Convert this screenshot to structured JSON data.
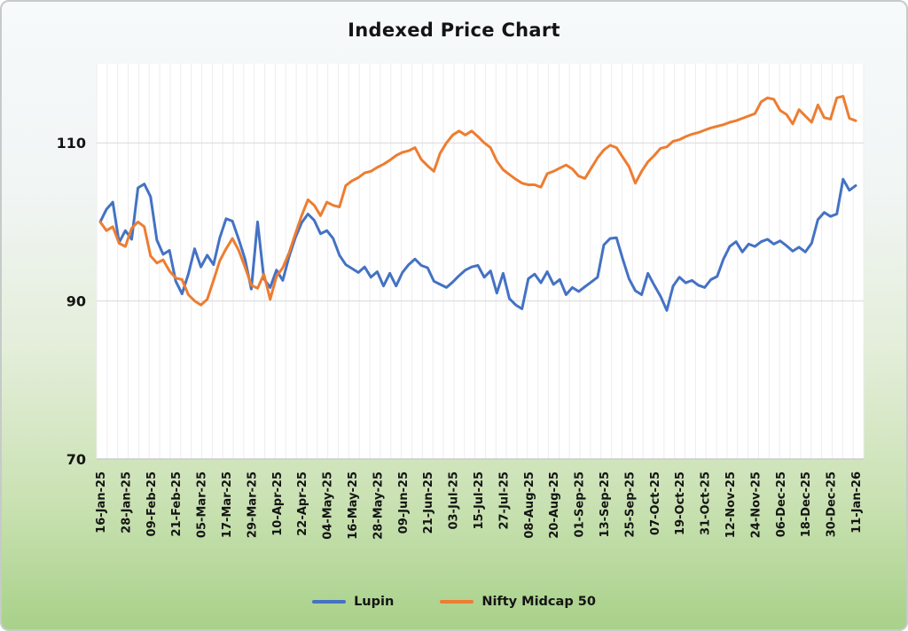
{
  "page": {
    "title": "Indexed Price Chart"
  },
  "theme": {
    "card_background_top": "#f7fafb",
    "card_background_bottom": "#a8d189",
    "plot_background": "#ffffff",
    "grid_vertical_color": "#ededef",
    "grid_horizontal_color": "#d8d8d8",
    "axis_line_color": "#c9cbcc",
    "text_color": "#141414"
  },
  "legend": {
    "items": [
      {
        "label": "Lupin",
        "color": "#4472C4"
      },
      {
        "label": "Nifty Midcap 50",
        "color": "#ED7D31"
      }
    ]
  },
  "chart_data": {
    "type": "line",
    "title": "Indexed Price Chart",
    "xlabel": "",
    "ylabel": "",
    "ylim": [
      70,
      120
    ],
    "y_ticks": [
      70,
      90,
      110
    ],
    "x_start": "16-Jan-25",
    "x_end": "11-Jan-26",
    "points_interval_days": 3,
    "x_tick_interval_days": 12,
    "x_tick_rotation": -90,
    "grid": "dense vertical minor lines + horizontal lines at 90 and 110",
    "legend_position": "bottom",
    "x_tick_labels": [
      "16-Jan-25",
      "28-Jan-25",
      "09-Feb-25",
      "21-Feb-25",
      "05-Mar-25",
      "17-Mar-25",
      "29-Mar-25",
      "10-Apr-25",
      "22-Apr-25",
      "04-May-25",
      "16-May-25",
      "28-May-25",
      "09-Jun-25",
      "21-Jun-25",
      "03-Jul-25",
      "15-Jul-25",
      "27-Jul-25",
      "08-Aug-25",
      "20-Aug-25",
      "01-Sep-25",
      "13-Sep-25",
      "25-Sep-25",
      "07-Oct-25",
      "19-Oct-25",
      "31-Oct-25",
      "12-Nov-25",
      "24-Nov-25",
      "06-Dec-25",
      "18-Dec-25",
      "30-Dec-25",
      "11-Jan-26"
    ],
    "series": [
      {
        "name": "Lupin",
        "color": "#4472C4",
        "values": [
          100,
          101.6,
          102.5,
          97.4,
          98.9,
          97.8,
          104.3,
          104.8,
          103.2,
          97.7,
          95.9,
          96.4,
          92.5,
          90.9,
          93.4,
          96.6,
          94.3,
          95.8,
          94.6,
          98,
          100.4,
          100.1,
          97.8,
          95.3,
          91.5,
          100,
          92.8,
          91.7,
          93.9,
          92.6,
          95.6,
          98,
          99.9,
          101,
          100.2,
          98.5,
          98.9,
          97.9,
          95.8,
          94.6,
          94.1,
          93.6,
          94.3,
          93,
          93.7,
          91.9,
          93.5,
          91.9,
          93.6,
          94.6,
          95.3,
          94.5,
          94.2,
          92.5,
          92.1,
          91.7,
          92.4,
          93.2,
          93.9,
          94.3,
          94.5,
          93,
          93.8,
          91,
          93.5,
          90.3,
          89.5,
          89,
          92.8,
          93.4,
          92.3,
          93.7,
          92.1,
          92.7,
          90.8,
          91.7,
          91.2,
          91.8,
          92.4,
          93,
          97.1,
          97.9,
          98,
          95.3,
          92.8,
          91.3,
          90.8,
          93.5,
          92,
          90.6,
          88.8,
          91.9,
          93,
          92.3,
          92.6,
          92,
          91.7,
          92.7,
          93.1,
          95.3,
          96.9,
          97.5,
          96.2,
          97.2,
          96.9,
          97.5,
          97.8,
          97.2,
          97.6,
          97,
          96.3,
          96.8,
          96.2,
          97.3,
          100.3,
          101.2,
          100.7,
          101,
          105.4,
          104,
          104.6
        ]
      },
      {
        "name": "Nifty Midcap 50",
        "color": "#ED7D31",
        "values": [
          100,
          98.9,
          99.4,
          97.3,
          96.9,
          99.2,
          100,
          99.4,
          95.7,
          94.8,
          95.2,
          93.8,
          92.9,
          92.7,
          90.8,
          90,
          89.5,
          90.2,
          92.6,
          95.1,
          96.6,
          97.9,
          96.4,
          94.3,
          92,
          91.6,
          93.4,
          90.2,
          93.1,
          94.2,
          96.1,
          98.5,
          100.8,
          102.8,
          102.1,
          100.8,
          102.5,
          102.1,
          101.9,
          104.6,
          105.2,
          105.6,
          106.2,
          106.4,
          106.9,
          107.3,
          107.8,
          108.4,
          108.8,
          109,
          109.4,
          107.9,
          107.1,
          106.4,
          108.7,
          110,
          111,
          111.5,
          111,
          111.5,
          110.8,
          110,
          109.4,
          107.7,
          106.6,
          106,
          105.4,
          104.9,
          104.7,
          104.7,
          104.4,
          106.1,
          106.4,
          106.8,
          107.2,
          106.7,
          105.8,
          105.5,
          106.8,
          108.1,
          109.1,
          109.7,
          109.4,
          108.2,
          107,
          104.9,
          106.4,
          107.6,
          108.4,
          109.3,
          109.5,
          110.2,
          110.4,
          110.8,
          111.1,
          111.3,
          111.6,
          111.9,
          112.1,
          112.3,
          112.6,
          112.8,
          113.1,
          113.4,
          113.7,
          115.2,
          115.7,
          115.5,
          114.1,
          113.6,
          112.4,
          114.2,
          113.4,
          112.6,
          114.8,
          113.2,
          113,
          115.7,
          115.9,
          113.1,
          112.8
        ]
      }
    ]
  }
}
